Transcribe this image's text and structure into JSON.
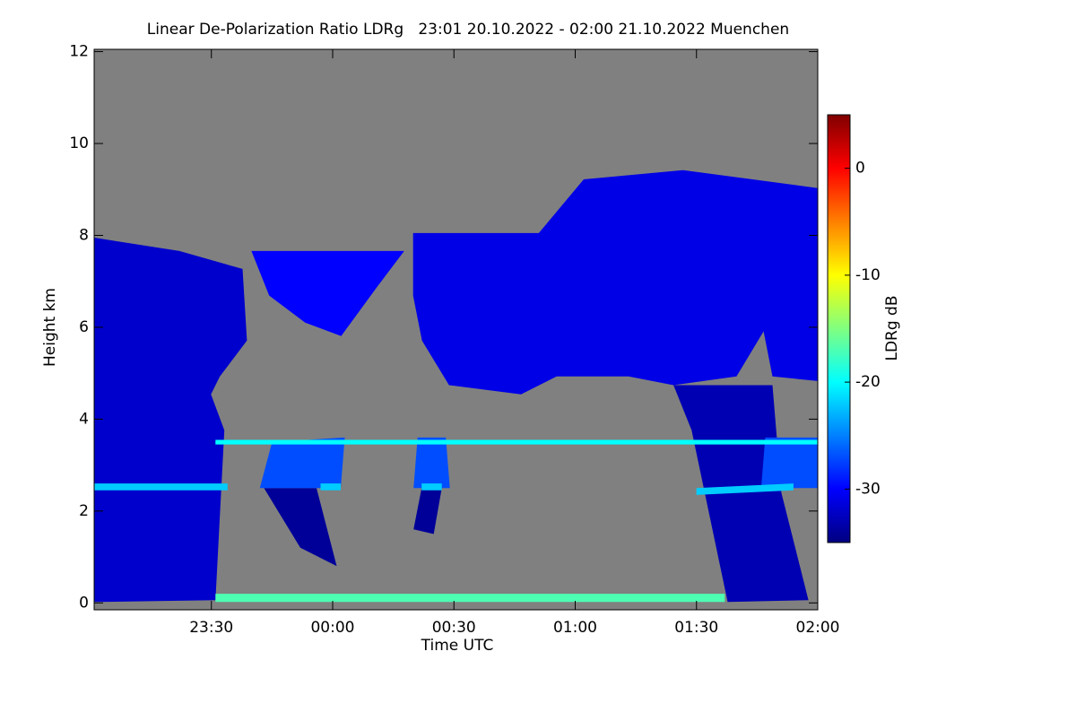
{
  "chart_data": {
    "type": "heatmap",
    "title": "Linear De-Polarization Ratio LDRg   23:01 20.10.2022 - 02:00 21.10.2022 Muenchen",
    "xlabel": "Time UTC",
    "ylabel": "Height km",
    "colorbar_label": "LDRg dB",
    "colormap": "jet",
    "background": "#808080",
    "xlim": [
      1,
      180
    ],
    "xticks": [
      {
        "value": 30,
        "label": "23:30"
      },
      {
        "value": 60,
        "label": "00:00"
      },
      {
        "value": 90,
        "label": "00:30"
      },
      {
        "value": 120,
        "label": "01:00"
      },
      {
        "value": 150,
        "label": "01:30"
      },
      {
        "value": 180,
        "label": "02:00"
      }
    ],
    "ylim": [
      -0.15,
      12.05
    ],
    "yticks": [
      0,
      2,
      4,
      6,
      8,
      10,
      12
    ],
    "clim": [
      -35,
      5
    ],
    "cticks": [
      0,
      -10,
      -20,
      -30
    ],
    "regions": [
      {
        "ldr": -32,
        "points": [
          [
            1,
            7.95
          ],
          [
            22.1,
            7.66
          ],
          [
            37.7,
            7.27
          ],
          [
            38.8,
            5.71
          ],
          [
            32.1,
            4.93
          ],
          [
            29.9,
            4.54
          ],
          [
            33.2,
            3.76
          ],
          [
            31,
            0.06
          ],
          [
            1,
            0.02
          ]
        ]
      },
      {
        "ldr": -30,
        "points": [
          [
            39.9,
            7.66
          ],
          [
            77.7,
            7.66
          ],
          [
            71,
            6.88
          ],
          [
            62.1,
            5.81
          ],
          [
            53.2,
            6.1
          ],
          [
            44.3,
            6.69
          ]
        ]
      },
      {
        "ldr": -31,
        "points": [
          [
            79.9,
            8.05
          ],
          [
            111,
            8.05
          ],
          [
            122.1,
            9.22
          ],
          [
            146.6,
            9.42
          ],
          [
            180,
            9.03
          ],
          [
            180,
            4.83
          ],
          [
            168.8,
            4.93
          ],
          [
            166.6,
            5.91
          ],
          [
            159.9,
            4.93
          ],
          [
            144.3,
            4.74
          ],
          [
            133.2,
            4.93
          ],
          [
            115.4,
            4.93
          ],
          [
            106.6,
            4.54
          ],
          [
            88.8,
            4.74
          ],
          [
            82.1,
            5.71
          ],
          [
            79.9,
            6.69
          ]
        ]
      },
      {
        "ldr": -33,
        "points": [
          [
            144.3,
            4.74
          ],
          [
            168.8,
            4.74
          ],
          [
            171,
            2.4
          ],
          [
            177.7,
            0.06
          ],
          [
            157.7,
            0.02
          ],
          [
            148.8,
            3.76
          ]
        ]
      },
      {
        "ldr": -34,
        "points": [
          [
            43,
            2.5
          ],
          [
            56,
            2.5
          ],
          [
            61,
            0.8
          ],
          [
            52,
            1.2
          ]
        ]
      },
      {
        "ldr": -34,
        "points": [
          [
            82,
            2.5
          ],
          [
            87,
            2.5
          ],
          [
            85,
            1.5
          ],
          [
            80,
            1.6
          ]
        ]
      },
      {
        "ldr": -27,
        "points": [
          [
            42,
            2.5
          ],
          [
            62,
            2.5
          ],
          [
            63,
            3.6
          ],
          [
            45,
            3.5
          ]
        ]
      },
      {
        "ldr": -27,
        "points": [
          [
            80,
            2.5
          ],
          [
            89,
            2.5
          ],
          [
            88,
            3.6
          ],
          [
            81,
            3.6
          ]
        ]
      },
      {
        "ldr": -27,
        "points": [
          [
            166,
            2.5
          ],
          [
            180,
            2.5
          ],
          [
            180,
            3.6
          ],
          [
            167,
            3.6
          ]
        ]
      },
      {
        "ldr": -22,
        "points": [
          [
            1,
            2.45
          ],
          [
            34,
            2.45
          ],
          [
            34,
            2.6
          ],
          [
            1,
            2.6
          ]
        ]
      },
      {
        "ldr": -22,
        "points": [
          [
            57,
            2.45
          ],
          [
            62,
            2.45
          ],
          [
            62,
            2.6
          ],
          [
            57,
            2.6
          ]
        ]
      },
      {
        "ldr": -22,
        "points": [
          [
            82,
            2.45
          ],
          [
            87,
            2.45
          ],
          [
            87,
            2.6
          ],
          [
            82,
            2.6
          ]
        ]
      },
      {
        "ldr": -22,
        "points": [
          [
            150,
            2.35
          ],
          [
            174,
            2.45
          ],
          [
            174,
            2.6
          ],
          [
            150,
            2.5
          ]
        ]
      },
      {
        "ldr": -20,
        "points": [
          [
            31,
            3.45
          ],
          [
            180,
            3.45
          ],
          [
            180,
            3.55
          ],
          [
            31,
            3.55
          ]
        ]
      },
      {
        "ldr": -17,
        "points": [
          [
            31,
            0.02
          ],
          [
            157,
            0.02
          ],
          [
            157,
            0.2
          ],
          [
            31,
            0.2
          ]
        ]
      }
    ]
  }
}
